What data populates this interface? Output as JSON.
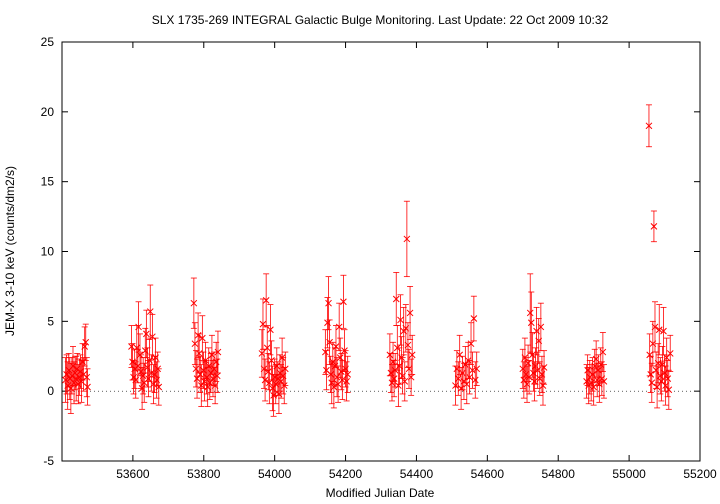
{
  "chart_data": {
    "type": "scatter",
    "title": "SLX 1735-269   INTEGRAL Galactic Bulge Monitoring.  Last Update: 22 Oct 2009 10:32",
    "xlabel": "Modified Julian Date",
    "ylabel": "JEM-X 3-10 keV (counts/dm2/s)",
    "xlim": [
      53400,
      55200
    ],
    "ylim": [
      -5,
      25
    ],
    "x_ticks": [
      53600,
      53800,
      54000,
      54200,
      54400,
      54600,
      54800,
      55000,
      55200
    ],
    "y_ticks": [
      -5,
      0,
      5,
      10,
      15,
      20,
      25
    ],
    "grid": false,
    "legend": "none",
    "colors": {
      "points": "#ff0000",
      "axes": "#000000",
      "background": "#ffffff"
    },
    "series": [
      {
        "marker": "x",
        "error_bars": true,
        "points": [
          [
            53410,
            0.8,
            1.6
          ],
          [
            53413,
            1.2,
            1.4
          ],
          [
            53416,
            0.4,
            1.7
          ],
          [
            53419,
            1.5,
            1.2
          ],
          [
            53422,
            0.9,
            1.5
          ],
          [
            53425,
            0.2,
            1.8
          ],
          [
            53428,
            1.1,
            1.3
          ],
          [
            53431,
            1.8,
            1.4
          ],
          [
            53434,
            0.6,
            1.5
          ],
          [
            53437,
            1.3,
            1.2
          ],
          [
            53440,
            0.9,
            1.6
          ],
          [
            53443,
            1.6,
            1.1
          ],
          [
            53446,
            0.5,
            1.4
          ],
          [
            53449,
            1.0,
            1.3
          ],
          [
            53452,
            1.4,
            1.2
          ],
          [
            53455,
            0.7,
            1.5
          ],
          [
            53458,
            2.1,
            1.3
          ],
          [
            53461,
            1.2,
            1.2
          ],
          [
            53464,
            3.2,
            1.4
          ],
          [
            53467,
            3.5,
            1.3
          ],
          [
            53470,
            1.0,
            1.4
          ],
          [
            53472,
            0.3,
            1.3
          ],
          [
            53596,
            3.2,
            1.5
          ],
          [
            53599,
            2.1,
            1.3
          ],
          [
            53602,
            1.0,
            1.2
          ],
          [
            53605,
            1.6,
            1.4
          ],
          [
            53608,
            0.8,
            1.3
          ],
          [
            53611,
            3.1,
            1.6
          ],
          [
            53614,
            1.8,
            1.2
          ],
          [
            53616,
            4.6,
            1.8
          ],
          [
            53620,
            2.6,
            1.5
          ],
          [
            53623,
            1.4,
            1.2
          ],
          [
            53626,
            0.2,
            1.5
          ],
          [
            53629,
            1.1,
            1.3
          ],
          [
            53632,
            0.6,
            1.4
          ],
          [
            53635,
            2.9,
            1.6
          ],
          [
            53638,
            4.1,
            1.7
          ],
          [
            53641,
            1.7,
            1.4
          ],
          [
            53644,
            0.9,
            1.3
          ],
          [
            53647,
            2.2,
            1.5
          ],
          [
            53649,
            5.7,
            1.9
          ],
          [
            53652,
            1.3,
            1.3
          ],
          [
            53655,
            3.9,
            1.6
          ],
          [
            53658,
            0.5,
            1.4
          ],
          [
            53661,
            1.2,
            1.3
          ],
          [
            53664,
            2.4,
            1.4
          ],
          [
            53667,
            0.8,
            1.3
          ],
          [
            53670,
            1.6,
            1.2
          ],
          [
            53673,
            0.3,
            1.3
          ],
          [
            53772,
            6.3,
            1.8
          ],
          [
            53775,
            3.4,
            1.5
          ],
          [
            53778,
            1.6,
            1.3
          ],
          [
            53781,
            0.9,
            1.4
          ],
          [
            53784,
            4.0,
            1.6
          ],
          [
            53787,
            2.7,
            1.4
          ],
          [
            53790,
            1.2,
            1.3
          ],
          [
            53793,
            0.4,
            1.5
          ],
          [
            53796,
            3.8,
            1.6
          ],
          [
            53799,
            1.5,
            1.3
          ],
          [
            53802,
            0.7,
            1.4
          ],
          [
            53805,
            2.2,
            1.3
          ],
          [
            53808,
            1.0,
            1.2
          ],
          [
            53811,
            0.3,
            1.4
          ],
          [
            53814,
            1.8,
            1.3
          ],
          [
            53817,
            0.6,
            1.2
          ],
          [
            53820,
            1.3,
            1.4
          ],
          [
            53823,
            2.6,
            1.4
          ],
          [
            53826,
            0.9,
            1.3
          ],
          [
            53829,
            1.6,
            1.2
          ],
          [
            53832,
            0.4,
            1.3
          ],
          [
            53835,
            2.1,
            1.4
          ],
          [
            53838,
            1.1,
            1.2
          ],
          [
            53840,
            2.8,
            1.5
          ],
          [
            53964,
            2.7,
            1.7
          ],
          [
            53967,
            4.8,
            1.8
          ],
          [
            53970,
            1.6,
            1.4
          ],
          [
            53973,
            0.8,
            1.5
          ],
          [
            53976,
            6.5,
            1.9
          ],
          [
            53979,
            3.1,
            1.6
          ],
          [
            53982,
            1.4,
            1.3
          ],
          [
            53985,
            0.6,
            1.5
          ],
          [
            53988,
            4.4,
            1.8
          ],
          [
            53991,
            2.2,
            1.4
          ],
          [
            53994,
            0.2,
            1.6
          ],
          [
            53997,
            -0.3,
            1.5
          ],
          [
            54000,
            1.0,
            1.3
          ],
          [
            54003,
            0.5,
            1.4
          ],
          [
            54006,
            1.8,
            1.3
          ],
          [
            54009,
            0.9,
            1.2
          ],
          [
            54012,
            -0.2,
            1.4
          ],
          [
            54015,
            1.3,
            1.3
          ],
          [
            54018,
            0.7,
            1.2
          ],
          [
            54021,
            2.4,
            1.4
          ],
          [
            54024,
            1.1,
            1.3
          ],
          [
            54027,
            0.4,
            1.3
          ],
          [
            54030,
            1.6,
            1.2
          ],
          [
            54143,
            2.8,
            1.6
          ],
          [
            54146,
            1.5,
            1.4
          ],
          [
            54149,
            4.9,
            1.8
          ],
          [
            54152,
            6.3,
            1.9
          ],
          [
            54155,
            3.5,
            1.6
          ],
          [
            54158,
            1.2,
            1.3
          ],
          [
            54161,
            0.6,
            1.5
          ],
          [
            54164,
            2.1,
            1.4
          ],
          [
            54167,
            0.3,
            1.5
          ],
          [
            54170,
            1.8,
            1.3
          ],
          [
            54173,
            3.2,
            1.5
          ],
          [
            54176,
            1.0,
            1.4
          ],
          [
            54179,
            0.5,
            1.3
          ],
          [
            54182,
            4.6,
            1.7
          ],
          [
            54185,
            2.4,
            1.4
          ],
          [
            54188,
            1.4,
            1.3
          ],
          [
            54191,
            0.8,
            1.4
          ],
          [
            54194,
            6.4,
            1.9
          ],
          [
            54197,
            2.9,
            1.5
          ],
          [
            54200,
            1.6,
            1.3
          ],
          [
            54203,
            0.7,
            1.4
          ],
          [
            54206,
            1.2,
            1.3
          ],
          [
            54325,
            2.6,
            1.5
          ],
          [
            54328,
            1.3,
            1.4
          ],
          [
            54331,
            0.6,
            1.3
          ],
          [
            54334,
            2.1,
            1.4
          ],
          [
            54337,
            0.9,
            1.3
          ],
          [
            54340,
            1.5,
            1.2
          ],
          [
            54343,
            6.6,
            1.9
          ],
          [
            54346,
            3.1,
            1.6
          ],
          [
            54349,
            0.4,
            1.5
          ],
          [
            54352,
            1.8,
            1.3
          ],
          [
            54355,
            5.1,
            1.8
          ],
          [
            54358,
            2.4,
            1.5
          ],
          [
            54361,
            1.1,
            1.3
          ],
          [
            54364,
            4.3,
            1.7
          ],
          [
            54367,
            0.7,
            1.4
          ],
          [
            54370,
            4.5,
            1.7
          ],
          [
            54373,
            10.9,
            2.7
          ],
          [
            54376,
            3.3,
            1.6
          ],
          [
            54379,
            1.6,
            1.4
          ],
          [
            54382,
            5.6,
            1.9
          ],
          [
            54385,
            1.0,
            1.3
          ],
          [
            54388,
            2.6,
            1.4
          ],
          [
            54510,
            0.4,
            1.4
          ],
          [
            54514,
            1.6,
            1.3
          ],
          [
            54518,
            0.9,
            1.2
          ],
          [
            54522,
            2.6,
            1.4
          ],
          [
            54526,
            0.2,
            1.5
          ],
          [
            54530,
            1.3,
            1.2
          ],
          [
            54534,
            0.7,
            1.3
          ],
          [
            54538,
            1.9,
            1.3
          ],
          [
            54542,
            0.5,
            1.4
          ],
          [
            54546,
            2.2,
            1.3
          ],
          [
            54550,
            1.0,
            1.2
          ],
          [
            54554,
            3.4,
            1.5
          ],
          [
            54558,
            1.5,
            1.3
          ],
          [
            54562,
            5.2,
            1.6
          ],
          [
            54566,
            0.8,
            1.3
          ],
          [
            54570,
            1.6,
            1.2
          ],
          [
            54700,
            1.6,
            1.4
          ],
          [
            54703,
            0.8,
            1.3
          ],
          [
            54706,
            2.4,
            1.4
          ],
          [
            54709,
            1.2,
            1.2
          ],
          [
            54712,
            0.5,
            1.3
          ],
          [
            54715,
            2.0,
            1.3
          ],
          [
            54718,
            1.0,
            1.2
          ],
          [
            54721,
            5.6,
            2.8
          ],
          [
            54724,
            4.9,
            2.2
          ],
          [
            54727,
            2.6,
            1.6
          ],
          [
            54730,
            1.3,
            1.3
          ],
          [
            54733,
            0.7,
            1.4
          ],
          [
            54736,
            1.8,
            1.3
          ],
          [
            54739,
            4.3,
            1.7
          ],
          [
            54742,
            1.5,
            1.3
          ],
          [
            54745,
            3.6,
            1.6
          ],
          [
            54748,
            0.9,
            1.2
          ],
          [
            54751,
            4.6,
            1.7
          ],
          [
            54754,
            1.2,
            1.3
          ],
          [
            54757,
            0.4,
            1.4
          ],
          [
            54760,
            1.7,
            1.2
          ],
          [
            54880,
            0.7,
            1.2
          ],
          [
            54883,
            1.5,
            1.1
          ],
          [
            54886,
            0.4,
            1.3
          ],
          [
            54889,
            1.0,
            1.2
          ],
          [
            54893,
            0.6,
            1.3
          ],
          [
            54897,
            1.2,
            1.2
          ],
          [
            54900,
            0.3,
            1.3
          ],
          [
            54903,
            1.8,
            1.2
          ],
          [
            54907,
            2.3,
            1.3
          ],
          [
            54910,
            0.8,
            1.2
          ],
          [
            54913,
            1.5,
            1.1
          ],
          [
            54916,
            0.5,
            1.3
          ],
          [
            54920,
            1.9,
            1.2
          ],
          [
            54923,
            0.9,
            1.2
          ],
          [
            54926,
            2.8,
            1.4
          ],
          [
            54929,
            0.7,
            1.2
          ],
          [
            55056,
            19.0,
            1.5
          ],
          [
            55058,
            2.6,
            1.5
          ],
          [
            55061,
            1.2,
            1.3
          ],
          [
            55064,
            0.6,
            1.4
          ],
          [
            55067,
            3.4,
            1.6
          ],
          [
            55070,
            11.8,
            1.1
          ],
          [
            55073,
            4.6,
            1.8
          ],
          [
            55076,
            1.5,
            1.3
          ],
          [
            55079,
            0.3,
            1.5
          ],
          [
            55082,
            2.0,
            1.4
          ],
          [
            55085,
            4.4,
            1.8
          ],
          [
            55088,
            1.1,
            1.3
          ],
          [
            55091,
            0.7,
            1.4
          ],
          [
            55094,
            1.9,
            1.3
          ],
          [
            55097,
            4.3,
            1.7
          ],
          [
            55100,
            1.3,
            1.3
          ],
          [
            55103,
            0.4,
            1.4
          ],
          [
            55106,
            2.4,
            1.4
          ],
          [
            55109,
            0.9,
            1.3
          ],
          [
            55112,
            0.1,
            1.4
          ],
          [
            55116,
            2.7,
            1.3
          ]
        ]
      }
    ]
  }
}
